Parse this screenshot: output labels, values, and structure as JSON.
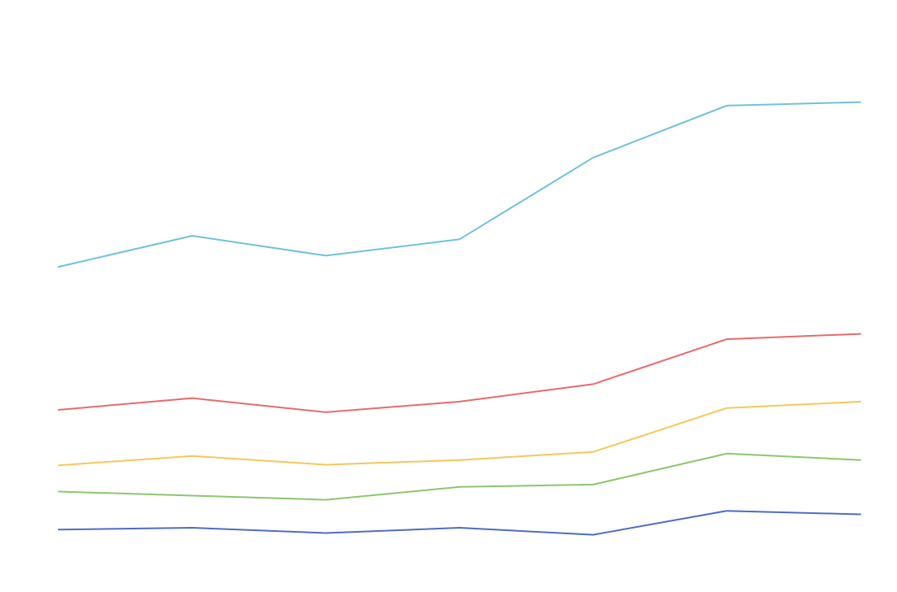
{
  "chart_data": {
    "type": "line",
    "title": "",
    "xlabel": "",
    "ylabel": "",
    "x": [
      1,
      2,
      3,
      4,
      5,
      6,
      7
    ],
    "ylim": [
      0,
      100
    ],
    "grid": false,
    "legend": "none",
    "series": [
      {
        "color": "#70c1dc",
        "values": [
          55.7,
          61.0,
          57.6,
          60.4,
          74.4,
          83.3,
          83.9
        ]
      },
      {
        "color": "#e86a6a",
        "values": [
          31.2,
          33.2,
          30.8,
          32.6,
          35.6,
          43.3,
          44.2
        ]
      },
      {
        "color": "#f7c75a",
        "values": [
          21.7,
          23.3,
          21.8,
          22.6,
          24.0,
          31.5,
          32.6
        ]
      },
      {
        "color": "#8cc66e",
        "values": [
          17.2,
          16.5,
          15.8,
          18.0,
          18.4,
          23.7,
          22.6
        ]
      },
      {
        "color": "#4d6cc4",
        "values": [
          10.7,
          11.0,
          10.1,
          11.0,
          9.8,
          13.9,
          13.3
        ]
      }
    ]
  }
}
